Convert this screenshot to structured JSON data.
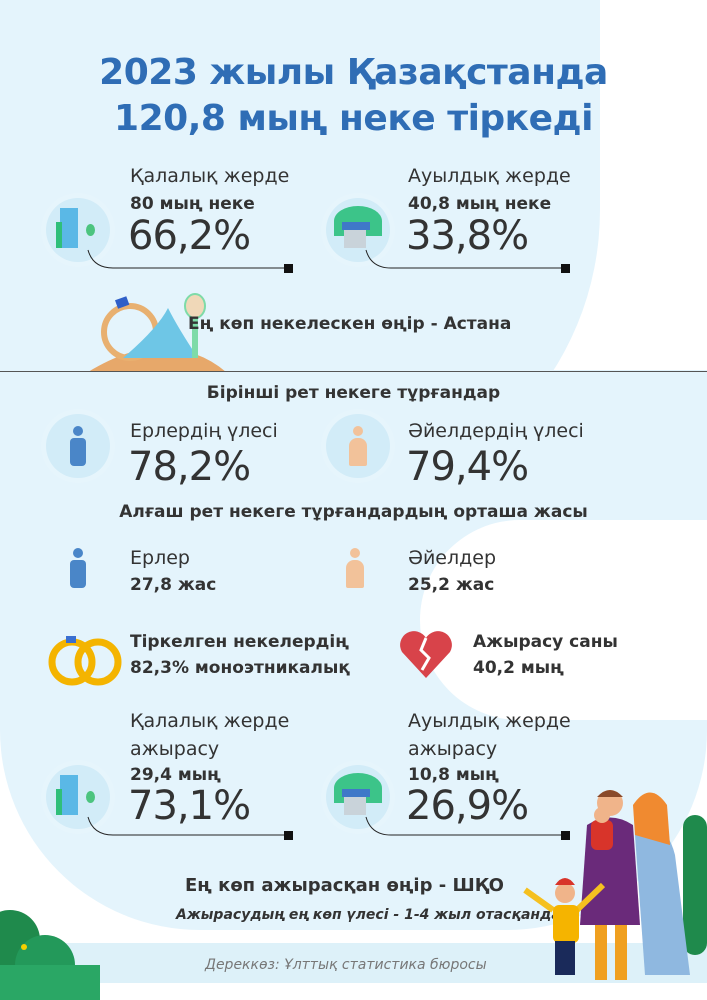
{
  "title": {
    "line1": "2023 жылы Қазақстанда",
    "line2": "120,8 мың неке тіркеді"
  },
  "marriages": {
    "urban": {
      "label": "Қалалық жерде",
      "count": "80 мың неке",
      "share": "66,2%"
    },
    "rural": {
      "label": "Ауылдық жерде",
      "count": "40,8 мың неке",
      "share": "33,8%"
    },
    "top_region": "Ең көп некелескен өңір - Астана"
  },
  "first_marriage": {
    "heading": "Бірінші рет некеге тұрғандар",
    "men": {
      "label": "Ерлердің үлесі",
      "share": "78,2%"
    },
    "women": {
      "label": "Әйелдердің үлесі",
      "share": "79,4%"
    }
  },
  "average_age": {
    "heading": "Алғаш рет некеге тұрғандардың орташа жасы",
    "men": {
      "label": "Ерлер",
      "value": "27,8 жас"
    },
    "women": {
      "label": "Әйелдер",
      "value": "25,2 жас"
    }
  },
  "monoethnic": {
    "line1": "Тіркелген некелердің",
    "line2": "82,3% моноэтникалық"
  },
  "divorces": {
    "label": "Ажырасу саны",
    "count": "40,2 мың",
    "urban": {
      "label1": "Қалалық жерде",
      "label2": "ажырасу",
      "count": "29,4 мың",
      "share": "73,1%"
    },
    "rural": {
      "label1": "Ауылдық жерде",
      "label2": "ажырасу",
      "count": "10,8 мың",
      "share": "26,9%"
    },
    "top_region": "Ең көп ажырасқан өңір - ШҚО",
    "note": "Ажырасудың ең көп үлесі - 1-4 жыл отасқандар"
  },
  "source": "Дереккөз: Ұлттық статистика бюросы",
  "colors": {
    "title": "#2f6db5",
    "background_blob": "#e4f4fc",
    "male": "#4a86c8",
    "female": "#f2c29a",
    "heart": "#d8434a",
    "ring": "#f4b400"
  }
}
